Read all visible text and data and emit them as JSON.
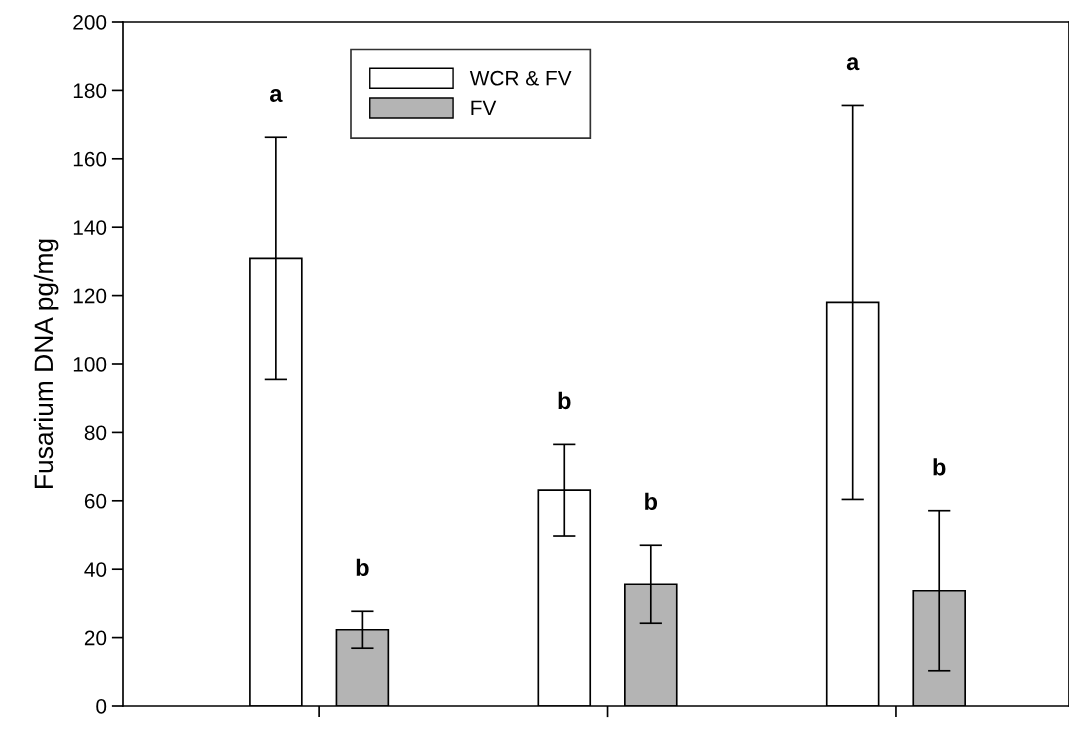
{
  "chart_data": {
    "type": "bar",
    "ylabel": "Fusarium DNA pg/mg",
    "categories": [
      null,
      null,
      null
    ],
    "series": [
      {
        "name": "WCR & FV",
        "color": "#ffffff",
        "values": [
          130.9,
          63.1,
          118.0
        ],
        "errors": [
          35.4,
          13.4,
          57.6
        ]
      },
      {
        "name": "FV",
        "color": "#b4b4b4",
        "values": [
          22.3,
          35.6,
          33.7
        ],
        "errors": [
          5.4,
          11.4,
          23.4
        ]
      }
    ],
    "annotations": [
      "a",
      "b",
      "b",
      "b",
      "a",
      "b"
    ],
    "ylim": [
      0,
      200
    ],
    "yticks": [
      0,
      20,
      40,
      60,
      80,
      100,
      120,
      140,
      160,
      180,
      200
    ],
    "grid": false,
    "legend": "top left"
  }
}
